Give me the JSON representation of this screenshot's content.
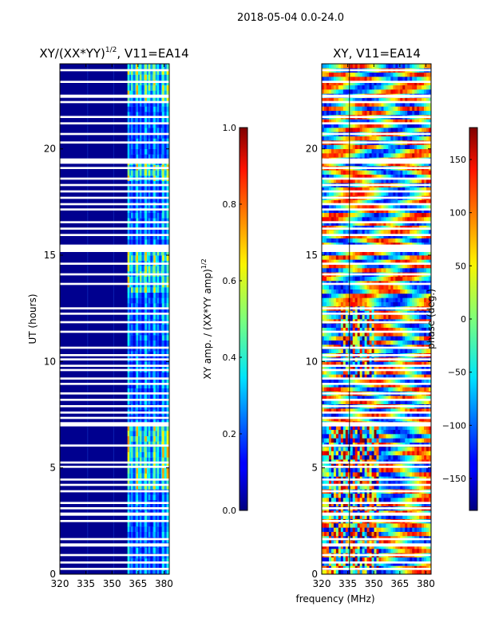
{
  "figure": {
    "suptitle": "2018-05-04 0.0-24.0",
    "xlabel": "frequency (MHz)"
  },
  "colors": {
    "frame": "#000000",
    "gap": "#ffffff",
    "background_low": "#00008f"
  },
  "chart_data": [
    {
      "type": "heatmap",
      "id": "amp",
      "title_main": "XY/(XX*YY)",
      "title_sup": "1/2",
      "title_tail": ", V11=EA14",
      "ylabel": "UT (hours)",
      "xlim": [
        320,
        383
      ],
      "ylim": [
        0,
        24
      ],
      "xticks": [
        {
          "value": 320,
          "label": "320"
        },
        {
          "value": 335,
          "label": "335"
        },
        {
          "value": 350,
          "label": "350"
        },
        {
          "value": 365,
          "label": "365"
        },
        {
          "value": 380,
          "label": "380"
        }
      ],
      "yticks": [
        {
          "value": 0,
          "label": "0"
        },
        {
          "value": 5,
          "label": "5"
        },
        {
          "value": 10,
          "label": "10"
        },
        {
          "value": 15,
          "label": "15"
        },
        {
          "value": 20,
          "label": "20"
        }
      ],
      "colorbar": {
        "label_main": "XY amp. / (XX*YY amp)",
        "label_sup": "1/2",
        "range": [
          0.0,
          1.0
        ],
        "ticks": [
          {
            "value": 0.0,
            "label": "0.0"
          },
          {
            "value": 0.2,
            "label": "0.2"
          },
          {
            "value": 0.4,
            "label": "0.4"
          },
          {
            "value": 0.6,
            "label": "0.6"
          },
          {
            "value": 0.8,
            "label": "0.8"
          },
          {
            "value": 1.0,
            "label": "1.0"
          }
        ]
      },
      "signal_band_mhz": [
        361,
        383
      ],
      "signal_columns_mhz": [
        361,
        363,
        366,
        368,
        371,
        373,
        376,
        378,
        381
      ],
      "typical_values": {
        "background": 0.03,
        "band_peak": 0.7
      }
    },
    {
      "type": "heatmap",
      "id": "phase",
      "title_main": "XY, V11=EA14",
      "ylabel": "",
      "xlim": [
        320,
        383
      ],
      "ylim": [
        0,
        24
      ],
      "xticks": [
        {
          "value": 320,
          "label": "320"
        },
        {
          "value": 335,
          "label": "335"
        },
        {
          "value": 350,
          "label": "350"
        },
        {
          "value": 365,
          "label": "365"
        },
        {
          "value": 380,
          "label": "380"
        }
      ],
      "yticks": [
        {
          "value": 0,
          "label": "0"
        },
        {
          "value": 5,
          "label": "5"
        },
        {
          "value": 10,
          "label": "10"
        },
        {
          "value": 15,
          "label": "15"
        },
        {
          "value": 20,
          "label": "20"
        }
      ],
      "colorbar": {
        "label_main": "phase (deg.)",
        "range": [
          -180,
          180
        ],
        "ticks": [
          {
            "value": -150,
            "label": "−150"
          },
          {
            "value": -100,
            "label": "−100"
          },
          {
            "value": -50,
            "label": "−50"
          },
          {
            "value": 0,
            "label": "0"
          },
          {
            "value": 50,
            "label": "50"
          },
          {
            "value": 100,
            "label": "100"
          },
          {
            "value": 150,
            "label": "150"
          }
        ]
      },
      "vertical_lines_mhz": [
        336
      ]
    }
  ],
  "flagged_hours": [
    [
      0.2,
      0.3
    ],
    [
      0.5,
      0.6
    ],
    [
      0.85,
      0.95
    ],
    [
      1.3,
      1.45
    ],
    [
      1.6,
      1.7
    ],
    [
      2.45,
      2.55
    ],
    [
      2.75,
      2.9
    ],
    [
      3.05,
      3.15
    ],
    [
      3.3,
      3.4
    ],
    [
      3.85,
      3.95
    ],
    [
      4.15,
      4.25
    ],
    [
      4.4,
      4.5
    ],
    [
      5.0,
      5.1
    ],
    [
      5.2,
      5.3
    ],
    [
      6.0,
      6.1
    ],
    [
      6.95,
      7.15
    ],
    [
      7.3,
      7.4
    ],
    [
      7.55,
      7.65
    ],
    [
      7.85,
      7.95
    ],
    [
      8.15,
      8.25
    ],
    [
      8.45,
      8.55
    ],
    [
      8.9,
      9.0
    ],
    [
      9.15,
      9.25
    ],
    [
      9.55,
      9.65
    ],
    [
      9.75,
      9.85
    ],
    [
      10.05,
      10.15
    ],
    [
      10.25,
      10.35
    ],
    [
      10.6,
      10.7
    ],
    [
      11.35,
      11.45
    ],
    [
      11.8,
      11.9
    ],
    [
      12.2,
      12.3
    ],
    [
      12.45,
      12.55
    ],
    [
      13.6,
      13.7
    ],
    [
      14.05,
      14.15
    ],
    [
      14.55,
      14.65
    ],
    [
      15.15,
      15.5
    ],
    [
      15.9,
      16.0
    ],
    [
      16.2,
      16.3
    ],
    [
      16.5,
      16.6
    ],
    [
      17.1,
      17.2
    ],
    [
      17.35,
      17.45
    ],
    [
      17.65,
      17.75
    ],
    [
      17.95,
      18.05
    ],
    [
      18.25,
      18.35
    ],
    [
      18.55,
      18.65
    ],
    [
      19.05,
      19.15
    ],
    [
      19.3,
      19.55
    ],
    [
      20.25,
      20.35
    ],
    [
      20.65,
      20.75
    ],
    [
      21.15,
      21.25
    ],
    [
      21.45,
      21.55
    ],
    [
      22.15,
      22.25
    ],
    [
      22.4,
      22.55
    ],
    [
      23.1,
      23.2
    ],
    [
      23.65,
      23.75
    ]
  ]
}
